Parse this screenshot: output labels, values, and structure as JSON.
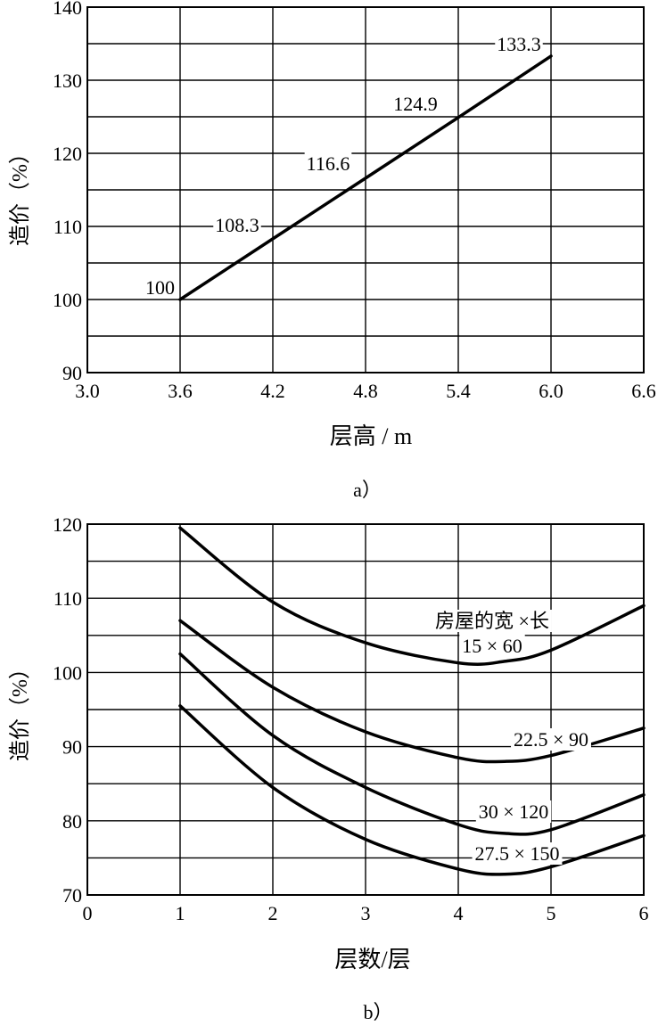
{
  "chart_data": [
    {
      "type": "line",
      "panel_label": "a）",
      "xlabel": "层高 / m",
      "ylabel": "造价（%）",
      "xlim": [
        3.0,
        6.6
      ],
      "ylim": [
        90,
        140
      ],
      "x_ticks": [
        "3.0",
        "3.6",
        "4.2",
        "4.8",
        "5.4",
        "6.0",
        "6.6"
      ],
      "y_ticks": [
        "90",
        "100",
        "110",
        "120",
        "130",
        "140"
      ],
      "grid": true,
      "series": [
        {
          "x": [
            3.6,
            4.2,
            4.8,
            5.4,
            6.0
          ],
          "y": [
            100,
            108.3,
            116.6,
            124.9,
            133.3
          ],
          "labels": [
            "100",
            "108.3",
            "116.6",
            "124.9",
            "133.3"
          ]
        }
      ]
    },
    {
      "type": "line",
      "panel_label": "b）",
      "xlabel": "层数/层",
      "ylabel": "造价（%）",
      "xlim": [
        0,
        6
      ],
      "ylim": [
        70,
        120
      ],
      "x_ticks": [
        "0",
        "1",
        "2",
        "3",
        "4",
        "5",
        "6"
      ],
      "y_ticks": [
        "70",
        "80",
        "90",
        "100",
        "110",
        "120"
      ],
      "grid": true,
      "legend_title": "房屋的宽 ×长",
      "series": [
        {
          "name": "15 × 60",
          "x": [
            1,
            2,
            3,
            4,
            4.5,
            5,
            6
          ],
          "y": [
            119.5,
            109.5,
            104,
            101.3,
            101.5,
            103,
            109
          ]
        },
        {
          "name": "22.5 × 90",
          "x": [
            1,
            2,
            3,
            4,
            4.5,
            5,
            6
          ],
          "y": [
            107,
            98,
            92,
            88.5,
            88,
            88.8,
            92.5
          ]
        },
        {
          "name": "30 × 120",
          "x": [
            1,
            2,
            3,
            4,
            4.5,
            5,
            6
          ],
          "y": [
            102.5,
            91.5,
            84.5,
            79.5,
            78.3,
            78.8,
            83.5
          ]
        },
        {
          "name": "27.5 × 150",
          "x": [
            1,
            2,
            3,
            4,
            4.5,
            5,
            6
          ],
          "y": [
            95.5,
            84.5,
            77.5,
            73.5,
            72.8,
            73.8,
            78
          ]
        }
      ]
    }
  ]
}
